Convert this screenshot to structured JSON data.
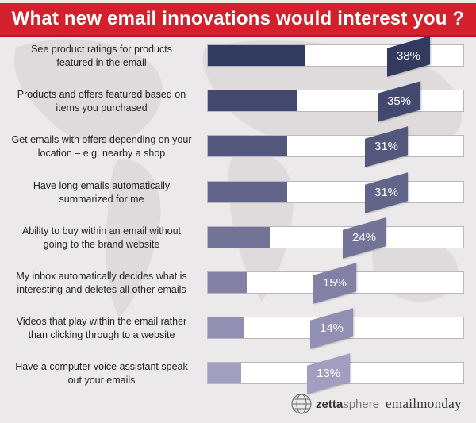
{
  "title": "What new email innovations would interest you ?",
  "colors": {
    "title_bg": "#d4202c",
    "bar_dark": "#333a60",
    "bar_light": "#a19ec0",
    "track_bg": "#ffffff"
  },
  "chart_data": {
    "type": "bar",
    "orientation": "horizontal",
    "title": "What new email innovations would interest you ?",
    "xlim": [
      0,
      100
    ],
    "grid": false,
    "legend": "none",
    "categories": [
      [
        "See product ratings for products",
        "featured in the email"
      ],
      [
        "Products and offers featured based on",
        "items you purchased"
      ],
      [
        "Get emails with offers depending on your",
        "location – e.g. nearby a shop"
      ],
      [
        "Have long emails automatically",
        "summarized for me"
      ],
      [
        "Ability to buy within an email without",
        "going to the brand website"
      ],
      [
        "My inbox automatically decides what is",
        "interesting and deletes all other emails"
      ],
      [
        "Videos that play within the email rather",
        "than clicking through to a website"
      ],
      [
        "Have a computer voice assistant speak",
        "out your emails"
      ]
    ],
    "values": [
      38,
      35,
      31,
      31,
      24,
      15,
      14,
      13
    ],
    "value_labels": [
      "38%",
      "35%",
      "31%",
      "31%",
      "24%",
      "15%",
      "14%",
      "13%"
    ]
  },
  "footer": {
    "logo_zetta_bold": "zetta",
    "logo_zetta_rest": "sphere",
    "logo_monday": "emailmonday"
  }
}
